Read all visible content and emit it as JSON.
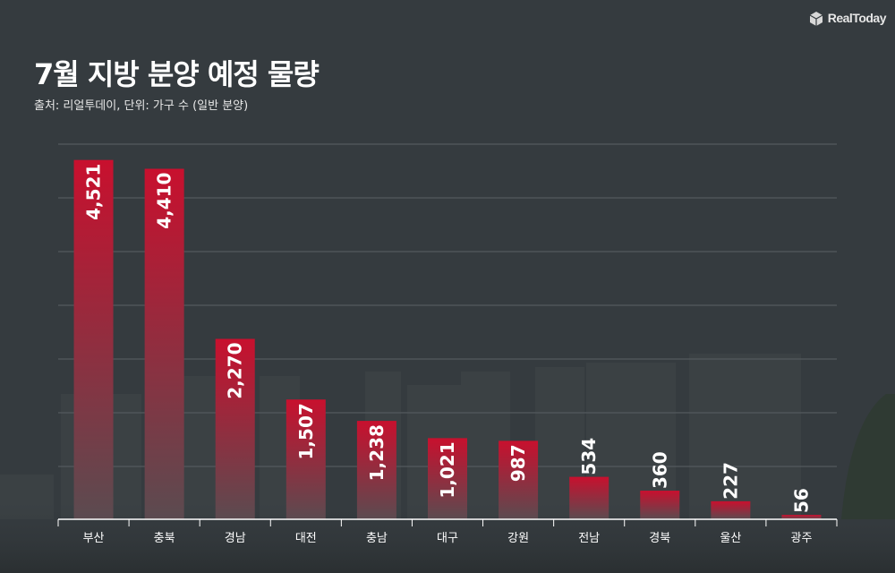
{
  "brand": "RealToday",
  "chart_data": {
    "type": "bar",
    "title": "7월 지방 분양 예정 물량",
    "subtitle": "출처: 리얼투데이, 단위: 가구 수 (일반 분양)",
    "categories": [
      "부산",
      "충북",
      "경남",
      "대전",
      "충남",
      "대구",
      "강원",
      "전남",
      "경북",
      "울산",
      "광주"
    ],
    "values": [
      4521,
      4410,
      2270,
      1507,
      1238,
      1021,
      987,
      534,
      360,
      227,
      56
    ],
    "value_labels": [
      "4,521",
      "4,410",
      "2,270",
      "1,507",
      "1,238",
      "1,021",
      "987",
      "534",
      "360",
      "227",
      "56"
    ],
    "xlabel": "",
    "ylabel": "",
    "ylim": [
      0,
      4720
    ],
    "grid": true,
    "colors": {
      "bar_top": "#c8102e",
      "bar_bottom": "#5b4b50",
      "grid": "#5a6064",
      "axis": "#ffffff"
    }
  }
}
